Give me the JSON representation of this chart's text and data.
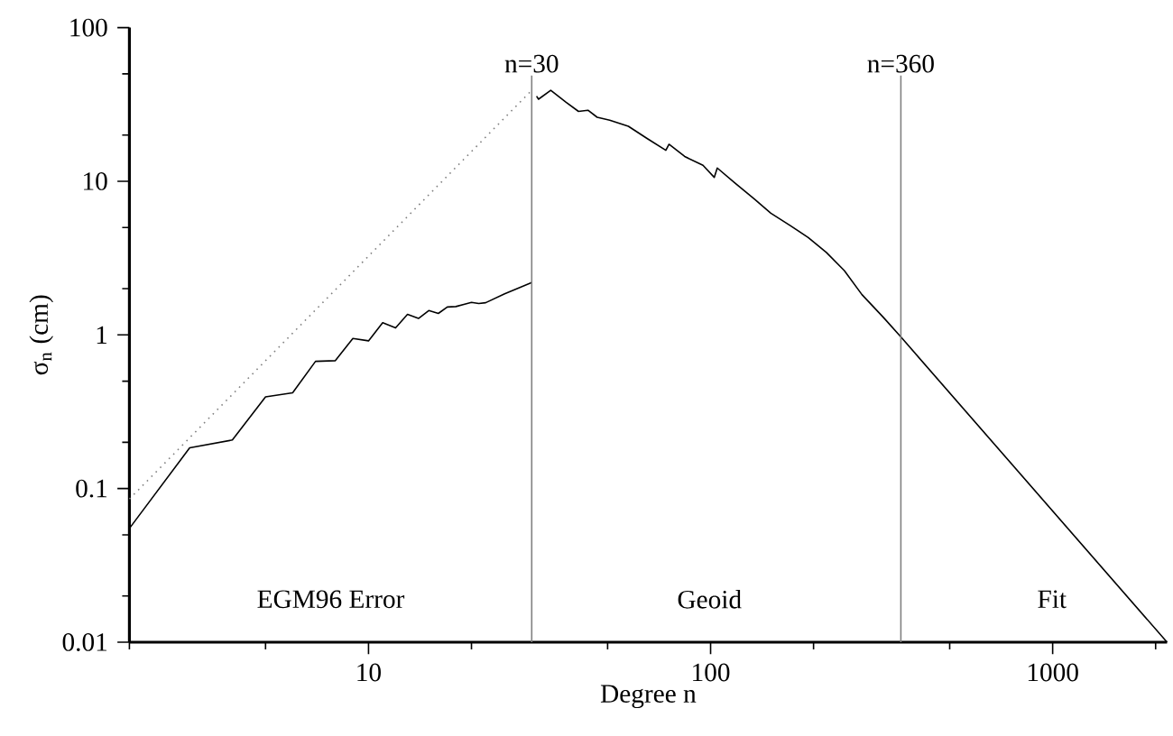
{
  "chart_data": {
    "type": "line",
    "xlabel": "Degree n",
    "ylabel": "σ$_{n}$ (cm)",
    "log": "xy",
    "grid": false,
    "xlim": [
      2,
      2160
    ],
    "ylim": [
      0.01,
      100
    ],
    "xticks": [
      {
        "value": 2,
        "label": null
      },
      {
        "value": 5,
        "label": null
      },
      10,
      {
        "value": 20,
        "label": null
      },
      {
        "value": 50,
        "label": null
      },
      100,
      {
        "value": 200,
        "label": null
      },
      {
        "value": 500,
        "label": null
      },
      1000,
      {
        "value": 2000,
        "label": null
      }
    ],
    "yticks": [
      0.01,
      {
        "value": 0.02,
        "label": null
      },
      {
        "value": 0.05,
        "label": null
      },
      0.1,
      {
        "value": 0.2,
        "label": null
      },
      {
        "value": 0.5,
        "label": null
      },
      1,
      {
        "value": 2,
        "label": null
      },
      {
        "value": 5,
        "label": null
      },
      10,
      {
        "value": 20,
        "label": null
      },
      {
        "value": 50,
        "label": null
      },
      100
    ],
    "series": [
      {
        "color": "#000000",
        "line_style": "solid",
        "x": [
          2,
          3,
          4,
          5,
          6,
          7,
          8,
          9,
          10,
          11,
          12,
          13,
          14,
          15,
          16,
          17,
          18,
          19,
          20,
          21,
          22,
          25,
          30
        ],
        "values": [
          0.055,
          0.184,
          0.207,
          0.395,
          0.42,
          0.673,
          0.68,
          0.948,
          0.915,
          1.2,
          1.11,
          1.36,
          1.28,
          1.44,
          1.38,
          1.52,
          1.53,
          1.58,
          1.63,
          1.6,
          1.62,
          1.85,
          2.19
        ]
      },
      {
        "color": "#808080",
        "line_style": "dotted",
        "x": [
          2,
          30
        ],
        "values": [
          0.0855,
          39.1
        ]
      },
      {
        "color": "#000000",
        "line_style": "solid",
        "x": [
          31,
          31.4,
          34.1,
          37.8,
          41.1,
          43.8,
          46.6,
          50.7,
          57.5,
          65.2,
          74,
          75.6,
          84,
          95,
          102.5,
          104.6,
          118,
          134,
          150,
          171,
          193,
          218,
          246,
          277,
          320,
          360,
          2160
        ],
        "values": [
          35.8,
          34.2,
          39.1,
          32.7,
          28.5,
          29,
          26.1,
          25,
          22.8,
          19,
          15.9,
          17.4,
          14.5,
          12.7,
          10.6,
          12.2,
          9.7,
          7.7,
          6.2,
          5.15,
          4.3,
          3.44,
          2.62,
          1.83,
          1.3,
          0.97,
          0.01
        ]
      }
    ],
    "ref_lines": [
      {
        "axis": "x",
        "value": 30,
        "label": "n=30",
        "color": "#808080"
      },
      {
        "axis": "x",
        "value": 360,
        "label": "n=360",
        "color": "#808080"
      }
    ],
    "annotations": [
      "EGM96 Error",
      "Geoid",
      "Fit"
    ]
  }
}
